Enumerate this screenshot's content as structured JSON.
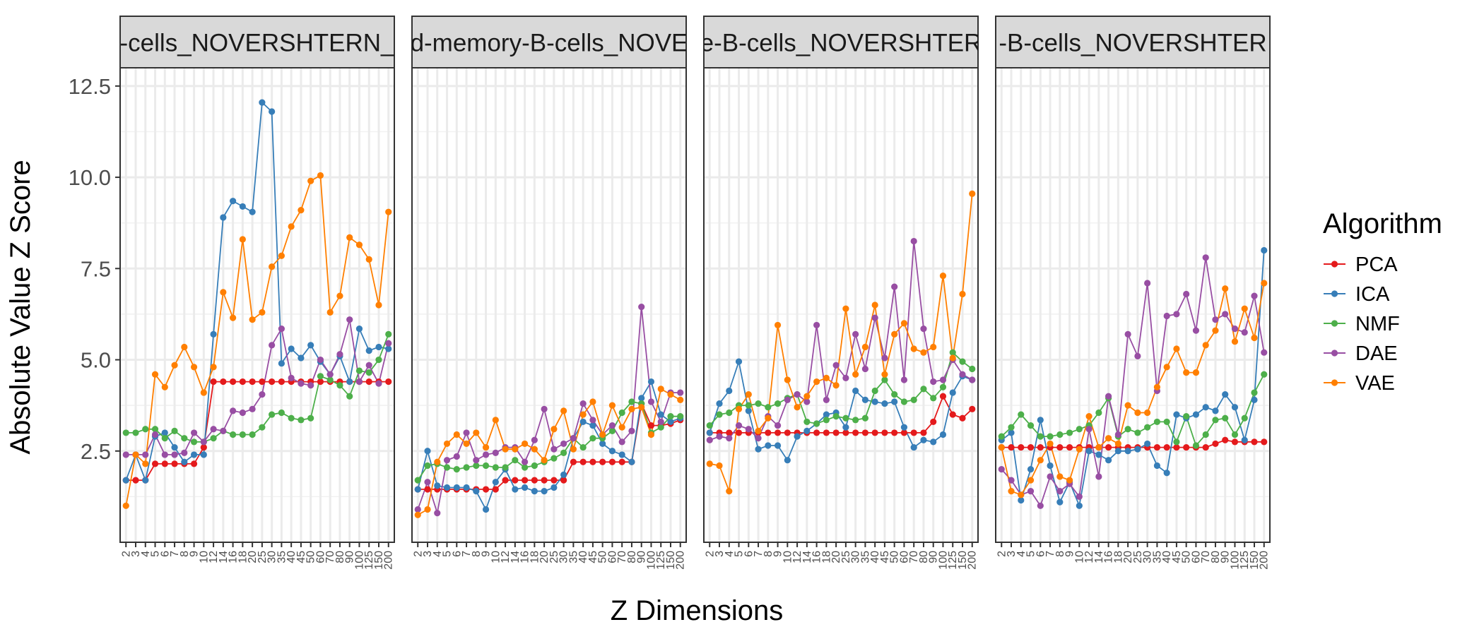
{
  "chart_data": {
    "type": "line",
    "xlabel": "Z Dimensions",
    "ylabel": "Absolute Value Z Score",
    "ylim": [
      0.0,
      13.0
    ],
    "yticks": [
      2.5,
      5.0,
      7.5,
      10.0,
      12.5
    ],
    "ytick_labels": [
      "2.5",
      "5.0",
      "7.5",
      "10.0",
      "12.5"
    ],
    "grid": true,
    "legend": {
      "title": "Algorithm",
      "position": "right"
    },
    "x": [
      "2",
      "3",
      "4",
      "5",
      "6",
      "7",
      "8",
      "9",
      "10",
      "12",
      "14",
      "16",
      "18",
      "20",
      "25",
      "30",
      "35",
      "40",
      "45",
      "50",
      "60",
      "70",
      "80",
      "90",
      "100",
      "125",
      "150",
      "200"
    ],
    "x_tick_labels": [
      "2",
      "3",
      "4",
      "5",
      "6",
      "7",
      "8",
      "9",
      "10",
      "12",
      "14",
      "16",
      "18",
      "20",
      "25",
      "30",
      "35",
      "40",
      "45",
      "50",
      "60",
      "70",
      "80",
      "90",
      "100",
      "125",
      "150",
      "200"
    ],
    "series_styles": [
      {
        "name": "PCA",
        "color": "#e41a1c"
      },
      {
        "name": "ICA",
        "color": "#377eb8"
      },
      {
        "name": "NMF",
        "color": "#4daf4a"
      },
      {
        "name": "DAE",
        "color": "#984ea3"
      },
      {
        "name": "VAE",
        "color": "#ff7f00"
      }
    ],
    "panels": [
      {
        "strip": "-cells_NOVERSHTERN_",
        "series": [
          {
            "name": "PCA",
            "values": [
              1.7,
              1.7,
              1.7,
              2.15,
              2.15,
              2.15,
              2.15,
              2.15,
              2.6,
              4.4,
              4.4,
              4.4,
              4.4,
              4.4,
              4.4,
              4.4,
              4.4,
              4.4,
              4.4,
              4.4,
              4.4,
              4.4,
              4.4,
              4.4,
              4.4,
              4.4,
              4.4,
              4.4
            ]
          },
          {
            "name": "ICA",
            "values": [
              1.7,
              2.4,
              1.7,
              2.9,
              3.0,
              2.6,
              2.2,
              2.4,
              2.4,
              5.7,
              8.9,
              9.35,
              9.2,
              9.05,
              12.05,
              11.8,
              4.9,
              5.3,
              5.05,
              5.4,
              4.95,
              4.6,
              5.1,
              4.4,
              5.85,
              5.25,
              5.35,
              5.3
            ]
          },
          {
            "name": "NMF",
            "values": [
              3.0,
              3.0,
              3.1,
              3.1,
              2.85,
              3.05,
              2.85,
              2.75,
              2.75,
              2.85,
              3.05,
              2.95,
              2.95,
              2.95,
              3.15,
              3.5,
              3.55,
              3.4,
              3.35,
              3.4,
              4.55,
              4.45,
              4.3,
              4.0,
              4.7,
              4.65,
              5.0,
              5.7
            ]
          },
          {
            "name": "DAE",
            "values": [
              2.4,
              2.4,
              2.4,
              2.95,
              2.4,
              2.4,
              2.45,
              3.0,
              2.75,
              3.1,
              3.05,
              3.6,
              3.55,
              3.65,
              4.05,
              5.4,
              5.85,
              4.5,
              4.35,
              4.3,
              5.0,
              4.6,
              5.15,
              6.1,
              4.4,
              4.85,
              4.35,
              5.45
            ]
          },
          {
            "name": "VAE",
            "values": [
              1.0,
              2.4,
              2.15,
              4.6,
              4.25,
              4.85,
              5.35,
              4.8,
              4.1,
              4.8,
              6.85,
              6.15,
              8.3,
              6.1,
              6.3,
              7.55,
              7.85,
              8.65,
              9.1,
              9.9,
              10.05,
              6.3,
              6.75,
              8.35,
              8.15,
              7.75,
              6.5,
              9.05
            ]
          }
        ]
      },
      {
        "strip": "d-memory-B-cells_NOVE",
        "series": [
          {
            "name": "PCA",
            "values": [
              1.45,
              1.45,
              1.45,
              1.45,
              1.45,
              1.45,
              1.45,
              1.45,
              1.45,
              1.7,
              1.7,
              1.7,
              1.7,
              1.7,
              1.7,
              1.7,
              2.2,
              2.2,
              2.2,
              2.2,
              2.2,
              2.2,
              2.2,
              3.8,
              3.2,
              3.2,
              3.25,
              3.35
            ]
          },
          {
            "name": "ICA",
            "values": [
              1.45,
              2.5,
              1.55,
              1.5,
              1.5,
              1.5,
              1.4,
              0.9,
              1.65,
              2.0,
              1.45,
              1.5,
              1.4,
              1.4,
              1.5,
              1.85,
              2.85,
              3.3,
              3.2,
              2.7,
              2.5,
              2.4,
              2.2,
              3.95,
              4.4,
              3.5,
              3.3,
              3.4
            ]
          },
          {
            "name": "NMF",
            "values": [
              1.7,
              2.1,
              2.15,
              2.05,
              2.0,
              2.05,
              2.1,
              2.1,
              2.05,
              2.05,
              2.25,
              2.05,
              2.1,
              2.2,
              2.3,
              2.45,
              2.85,
              2.6,
              2.85,
              2.85,
              3.05,
              3.55,
              3.85,
              3.8,
              3.0,
              3.15,
              3.45,
              3.45
            ]
          },
          {
            "name": "DAE",
            "values": [
              0.9,
              1.65,
              0.8,
              2.25,
              2.35,
              3.0,
              2.25,
              2.4,
              2.45,
              2.6,
              2.6,
              2.2,
              2.8,
              3.65,
              2.55,
              2.7,
              2.85,
              3.8,
              3.35,
              2.95,
              3.2,
              2.75,
              3.05,
              6.45,
              3.85,
              3.3,
              4.1,
              4.1
            ]
          },
          {
            "name": "VAE",
            "values": [
              0.75,
              0.9,
              2.2,
              2.7,
              2.95,
              2.7,
              3.0,
              2.6,
              3.35,
              2.55,
              2.55,
              2.7,
              2.55,
              2.25,
              3.1,
              3.6,
              2.55,
              3.5,
              3.85,
              2.95,
              3.75,
              3.15,
              3.65,
              3.7,
              2.95,
              4.2,
              4.05,
              3.9
            ]
          }
        ]
      },
      {
        "strip": "e-B-cells_NOVERSHTER",
        "series": [
          {
            "name": "PCA",
            "values": [
              3.0,
              3.0,
              3.0,
              3.0,
              3.0,
              3.0,
              3.0,
              3.0,
              3.0,
              3.0,
              3.0,
              3.0,
              3.0,
              3.0,
              3.0,
              3.0,
              3.0,
              3.0,
              3.0,
              3.0,
              3.0,
              3.0,
              3.0,
              3.3,
              4.0,
              3.5,
              3.4,
              3.65
            ]
          },
          {
            "name": "ICA",
            "values": [
              3.0,
              3.8,
              4.15,
              4.95,
              3.6,
              2.55,
              2.65,
              2.65,
              2.25,
              2.9,
              3.05,
              3.25,
              3.5,
              3.55,
              3.15,
              4.15,
              3.9,
              3.85,
              3.8,
              3.85,
              3.15,
              2.6,
              2.8,
              2.75,
              2.95,
              4.1,
              4.55,
              4.45
            ]
          },
          {
            "name": "NMF",
            "values": [
              3.2,
              3.5,
              3.55,
              3.75,
              3.75,
              3.8,
              3.7,
              3.8,
              3.95,
              4.05,
              3.3,
              3.25,
              3.35,
              3.45,
              3.4,
              3.35,
              3.4,
              4.15,
              4.45,
              4.05,
              3.85,
              3.9,
              4.2,
              3.95,
              4.25,
              5.2,
              4.95,
              4.75
            ]
          },
          {
            "name": "DAE",
            "values": [
              2.8,
              2.9,
              2.85,
              3.2,
              3.1,
              2.85,
              3.45,
              3.2,
              3.9,
              4.05,
              3.85,
              5.95,
              3.9,
              4.85,
              4.5,
              5.7,
              4.75,
              6.15,
              5.05,
              7.0,
              4.45,
              8.25,
              5.85,
              4.4,
              4.45,
              5.0,
              4.6,
              4.45
            ]
          },
          {
            "name": "VAE",
            "values": [
              2.15,
              2.1,
              1.4,
              3.65,
              4.05,
              3.05,
              3.4,
              5.95,
              4.45,
              3.7,
              4.0,
              4.4,
              4.5,
              4.3,
              6.4,
              4.6,
              5.35,
              6.5,
              4.6,
              5.7,
              6.0,
              5.3,
              5.2,
              5.35,
              7.3,
              5.05,
              6.8,
              9.55
            ]
          }
        ]
      },
      {
        "strip": "-B-cells_NOVERSHTER",
        "series": [
          {
            "name": "PCA",
            "values": [
              2.6,
              2.6,
              2.6,
              2.6,
              2.6,
              2.6,
              2.6,
              2.6,
              2.6,
              2.6,
              2.6,
              2.6,
              2.6,
              2.6,
              2.6,
              2.6,
              2.6,
              2.6,
              2.6,
              2.6,
              2.6,
              2.6,
              2.7,
              2.8,
              2.75,
              2.75,
              2.75,
              2.75
            ]
          },
          {
            "name": "ICA",
            "values": [
              2.8,
              3.0,
              1.15,
              2.0,
              3.35,
              2.1,
              1.1,
              1.65,
              1.0,
              2.5,
              2.4,
              2.25,
              2.5,
              2.5,
              2.55,
              2.7,
              2.1,
              1.9,
              3.5,
              3.4,
              3.5,
              3.7,
              3.6,
              4.05,
              3.7,
              2.8,
              3.9,
              8.0
            ]
          },
          {
            "name": "NMF",
            "values": [
              2.9,
              3.15,
              3.5,
              3.2,
              2.9,
              2.9,
              2.95,
              3.0,
              3.1,
              3.2,
              3.55,
              3.95,
              2.9,
              3.1,
              3.0,
              3.15,
              3.3,
              3.3,
              2.75,
              3.45,
              2.65,
              2.95,
              3.35,
              3.4,
              2.95,
              3.4,
              4.1,
              4.6
            ]
          },
          {
            "name": "DAE",
            "values": [
              2.0,
              1.7,
              1.3,
              1.4,
              1.0,
              1.8,
              1.4,
              1.6,
              1.25,
              3.1,
              1.8,
              4.0,
              2.95,
              5.7,
              5.1,
              7.1,
              4.15,
              6.2,
              6.25,
              6.8,
              5.8,
              7.8,
              6.1,
              6.25,
              5.85,
              5.75,
              6.75,
              5.2
            ]
          },
          {
            "name": "VAE",
            "values": [
              2.6,
              1.4,
              1.3,
              1.7,
              2.25,
              2.7,
              1.8,
              1.7,
              2.55,
              3.45,
              2.6,
              2.85,
              2.7,
              3.75,
              3.55,
              3.55,
              4.25,
              4.8,
              5.3,
              4.65,
              4.65,
              5.4,
              5.8,
              6.95,
              5.5,
              6.4,
              5.6,
              7.1
            ]
          }
        ]
      }
    ]
  }
}
